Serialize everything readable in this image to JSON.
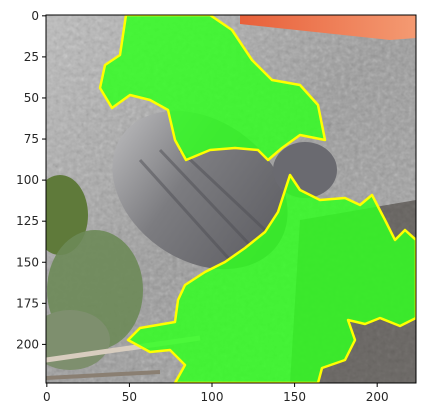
{
  "figure": {
    "image_description": "segmentation overlay: bright green mask with yellow outline over a photo of a gray bird on leafy ground",
    "image_width": 224,
    "image_height": 224,
    "mask_color": "#33ff22",
    "outline_color": "#ffff00",
    "x_ticks": [
      {
        "value": 0,
        "label": "0"
      },
      {
        "value": 50,
        "label": "50"
      },
      {
        "value": 100,
        "label": "100"
      },
      {
        "value": 150,
        "label": "150"
      },
      {
        "value": 200,
        "label": "200"
      }
    ],
    "y_ticks": [
      {
        "value": 0,
        "label": "0"
      },
      {
        "value": 25,
        "label": "25"
      },
      {
        "value": 50,
        "label": "50"
      },
      {
        "value": 75,
        "label": "75"
      },
      {
        "value": 100,
        "label": "100"
      },
      {
        "value": 125,
        "label": "125"
      },
      {
        "value": 150,
        "label": "150"
      },
      {
        "value": 175,
        "label": "175"
      },
      {
        "value": 200,
        "label": "200"
      }
    ]
  }
}
